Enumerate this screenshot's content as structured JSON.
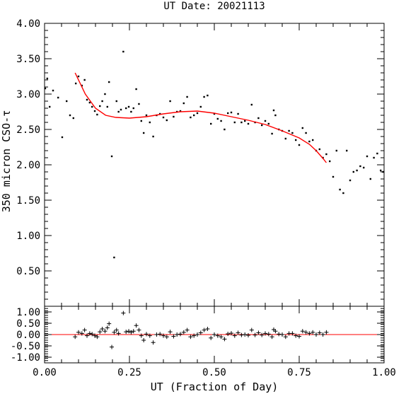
{
  "chart_data": [
    {
      "type": "scatter",
      "title": "UT Date: 20021113",
      "xlabel": "UT (Fraction of Day)",
      "ylabel": "350 micron CSO-τ",
      "xlim": [
        0,
        1
      ],
      "ylim": [
        0,
        4
      ],
      "x_ticks": [
        "0.00",
        "0.25",
        "0.50",
        "0.75",
        "1.00"
      ],
      "y_ticks": [
        "0.50",
        "1.00",
        "1.50",
        "2.00",
        "2.50",
        "3.00",
        "3.50",
        "4.00"
      ],
      "y_tick_values": [
        0.5,
        1.0,
        1.5,
        2.0,
        2.5,
        3.0,
        3.5,
        4.0
      ],
      "grid": false,
      "series": [
        {
          "marker": "dot",
          "color": "#000000",
          "points": [
            [
              0.002,
              3.08
            ],
            [
              0.008,
              3.22
            ],
            [
              0.015,
              2.82
            ],
            [
              0.025,
              3.05
            ],
            [
              0.04,
              2.95
            ],
            [
              0.052,
              2.39
            ],
            [
              0.065,
              2.9
            ],
            [
              0.075,
              2.7
            ],
            [
              0.085,
              2.66
            ],
            [
              0.092,
              3.15
            ],
            [
              0.1,
              3.25
            ],
            [
              0.11,
              3.12
            ],
            [
              0.118,
              3.2
            ],
            [
              0.125,
              2.92
            ],
            [
              0.133,
              2.88
            ],
            [
              0.14,
              2.82
            ],
            [
              0.148,
              2.76
            ],
            [
              0.155,
              2.71
            ],
            [
              0.163,
              2.83
            ],
            [
              0.17,
              2.9
            ],
            [
              0.178,
              3.0
            ],
            [
              0.185,
              2.82
            ],
            [
              0.19,
              3.17
            ],
            [
              0.198,
              2.12
            ],
            [
              0.205,
              0.69
            ],
            [
              0.212,
              2.9
            ],
            [
              0.218,
              2.75
            ],
            [
              0.225,
              2.78
            ],
            [
              0.232,
              3.6
            ],
            [
              0.24,
              2.8
            ],
            [
              0.248,
              2.82
            ],
            [
              0.255,
              2.75
            ],
            [
              0.262,
              2.8
            ],
            [
              0.27,
              3.07
            ],
            [
              0.278,
              2.86
            ],
            [
              0.285,
              2.62
            ],
            [
              0.292,
              2.45
            ],
            [
              0.3,
              2.7
            ],
            [
              0.31,
              2.6
            ],
            [
              0.32,
              2.4
            ],
            [
              0.33,
              2.7
            ],
            [
              0.34,
              2.72
            ],
            [
              0.35,
              2.67
            ],
            [
              0.36,
              2.63
            ],
            [
              0.37,
              2.9
            ],
            [
              0.38,
              2.68
            ],
            [
              0.39,
              2.75
            ],
            [
              0.4,
              2.76
            ],
            [
              0.41,
              2.87
            ],
            [
              0.42,
              2.96
            ],
            [
              0.43,
              2.67
            ],
            [
              0.44,
              2.7
            ],
            [
              0.45,
              2.73
            ],
            [
              0.46,
              2.82
            ],
            [
              0.47,
              2.96
            ],
            [
              0.48,
              2.98
            ],
            [
              0.49,
              2.58
            ],
            [
              0.5,
              2.72
            ],
            [
              0.51,
              2.65
            ],
            [
              0.52,
              2.62
            ],
            [
              0.53,
              2.5
            ],
            [
              0.54,
              2.73
            ],
            [
              0.55,
              2.74
            ],
            [
              0.56,
              2.6
            ],
            [
              0.57,
              2.72
            ],
            [
              0.58,
              2.6
            ],
            [
              0.59,
              2.62
            ],
            [
              0.6,
              2.58
            ],
            [
              0.61,
              2.85
            ],
            [
              0.62,
              2.6
            ],
            [
              0.63,
              2.66
            ],
            [
              0.64,
              2.56
            ],
            [
              0.65,
              2.62
            ],
            [
              0.66,
              2.58
            ],
            [
              0.67,
              2.44
            ],
            [
              0.675,
              2.77
            ],
            [
              0.68,
              2.7
            ],
            [
              0.69,
              2.5
            ],
            [
              0.7,
              2.48
            ],
            [
              0.71,
              2.37
            ],
            [
              0.72,
              2.48
            ],
            [
              0.73,
              2.45
            ],
            [
              0.74,
              2.35
            ],
            [
              0.75,
              2.28
            ],
            [
              0.76,
              2.52
            ],
            [
              0.77,
              2.45
            ],
            [
              0.78,
              2.33
            ],
            [
              0.79,
              2.35
            ],
            [
              0.8,
              2.2
            ],
            [
              0.81,
              2.22
            ],
            [
              0.82,
              2.1
            ],
            [
              0.83,
              2.15
            ],
            [
              0.84,
              2.05
            ],
            [
              0.85,
              1.83
            ],
            [
              0.86,
              2.2
            ],
            [
              0.87,
              1.65
            ],
            [
              0.88,
              1.6
            ],
            [
              0.89,
              2.2
            ],
            [
              0.9,
              1.78
            ],
            [
              0.91,
              1.9
            ],
            [
              0.92,
              1.92
            ],
            [
              0.93,
              1.98
            ],
            [
              0.94,
              1.96
            ],
            [
              0.95,
              2.12
            ],
            [
              0.96,
              1.8
            ],
            [
              0.97,
              2.1
            ],
            [
              0.98,
              2.16
            ],
            [
              0.99,
              1.92
            ],
            [
              0.997,
              1.9
            ]
          ]
        },
        {
          "marker": "line",
          "color": "#ff0000",
          "points": [
            [
              0.09,
              3.3
            ],
            [
              0.12,
              3.0
            ],
            [
              0.15,
              2.8
            ],
            [
              0.18,
              2.7
            ],
            [
              0.21,
              2.67
            ],
            [
              0.25,
              2.66
            ],
            [
              0.3,
              2.68
            ],
            [
              0.35,
              2.72
            ],
            [
              0.4,
              2.75
            ],
            [
              0.45,
              2.76
            ],
            [
              0.5,
              2.73
            ],
            [
              0.55,
              2.68
            ],
            [
              0.6,
              2.63
            ],
            [
              0.65,
              2.57
            ],
            [
              0.7,
              2.48
            ],
            [
              0.75,
              2.38
            ],
            [
              0.78,
              2.29
            ],
            [
              0.8,
              2.2
            ],
            [
              0.82,
              2.09
            ],
            [
              0.83,
              2.03
            ]
          ]
        }
      ]
    },
    {
      "type": "scatter",
      "title": "",
      "xlabel": "UT (Fraction of Day)",
      "ylabel": "",
      "xlim": [
        0,
        1
      ],
      "ylim": [
        -1.25,
        1.25
      ],
      "x_ticks": [
        "0.00",
        "0.25",
        "0.50",
        "0.75",
        "1.00"
      ],
      "y_ticks": [
        "1.00",
        "0.50",
        "0.00",
        "-0.50",
        "-1.00"
      ],
      "y_tick_values": [
        1.0,
        0.5,
        0.0,
        -0.5,
        -1.0
      ],
      "grid": false,
      "reference_line": {
        "y": 0,
        "color": "#ff0000"
      },
      "series": [
        {
          "marker": "plus",
          "color": "#000000",
          "points": [
            [
              0.09,
              -0.1
            ],
            [
              0.1,
              0.1
            ],
            [
              0.11,
              0.05
            ],
            [
              0.118,
              0.2
            ],
            [
              0.125,
              -0.05
            ],
            [
              0.133,
              0.05
            ],
            [
              0.14,
              0.02
            ],
            [
              0.148,
              -0.05
            ],
            [
              0.155,
              -0.1
            ],
            [
              0.163,
              0.12
            ],
            [
              0.17,
              0.25
            ],
            [
              0.178,
              0.15
            ],
            [
              0.185,
              0.3
            ],
            [
              0.19,
              0.48
            ],
            [
              0.198,
              -0.55
            ],
            [
              0.205,
              0.1
            ],
            [
              0.212,
              0.2
            ],
            [
              0.218,
              0.05
            ],
            [
              0.232,
              0.95
            ],
            [
              0.24,
              0.12
            ],
            [
              0.248,
              0.15
            ],
            [
              0.255,
              0.1
            ],
            [
              0.262,
              0.15
            ],
            [
              0.27,
              0.4
            ],
            [
              0.278,
              0.2
            ],
            [
              0.285,
              -0.05
            ],
            [
              0.292,
              -0.25
            ],
            [
              0.3,
              0.02
            ],
            [
              0.31,
              -0.05
            ],
            [
              0.32,
              -0.35
            ],
            [
              0.33,
              0.0
            ],
            [
              0.34,
              0.02
            ],
            [
              0.35,
              -0.05
            ],
            [
              0.36,
              -0.1
            ],
            [
              0.37,
              0.12
            ],
            [
              0.38,
              -0.08
            ],
            [
              0.39,
              0.0
            ],
            [
              0.4,
              0.02
            ],
            [
              0.41,
              0.1
            ],
            [
              0.42,
              0.2
            ],
            [
              0.43,
              -0.1
            ],
            [
              0.44,
              -0.05
            ],
            [
              0.45,
              0.0
            ],
            [
              0.46,
              0.08
            ],
            [
              0.47,
              0.2
            ],
            [
              0.48,
              0.25
            ],
            [
              0.49,
              -0.15
            ],
            [
              0.5,
              0.0
            ],
            [
              0.51,
              -0.05
            ],
            [
              0.52,
              -0.1
            ],
            [
              0.53,
              -0.2
            ],
            [
              0.54,
              0.03
            ],
            [
              0.55,
              0.06
            ],
            [
              0.56,
              -0.05
            ],
            [
              0.57,
              0.08
            ],
            [
              0.58,
              -0.02
            ],
            [
              0.59,
              0.0
            ],
            [
              0.6,
              -0.03
            ],
            [
              0.61,
              0.2
            ],
            [
              0.62,
              -0.02
            ],
            [
              0.63,
              0.08
            ],
            [
              0.64,
              -0.02
            ],
            [
              0.65,
              0.05
            ],
            [
              0.66,
              0.02
            ],
            [
              0.67,
              -0.1
            ],
            [
              0.675,
              0.22
            ],
            [
              0.68,
              0.15
            ],
            [
              0.69,
              0.02
            ],
            [
              0.7,
              0.0
            ],
            [
              0.71,
              -0.1
            ],
            [
              0.72,
              0.05
            ],
            [
              0.73,
              0.05
            ],
            [
              0.74,
              -0.05
            ],
            [
              0.75,
              -0.08
            ],
            [
              0.76,
              0.15
            ],
            [
              0.77,
              0.1
            ],
            [
              0.78,
              0.05
            ],
            [
              0.79,
              0.1
            ],
            [
              0.8,
              0.0
            ],
            [
              0.81,
              0.08
            ],
            [
              0.82,
              0.0
            ],
            [
              0.83,
              0.1
            ]
          ]
        }
      ]
    }
  ]
}
